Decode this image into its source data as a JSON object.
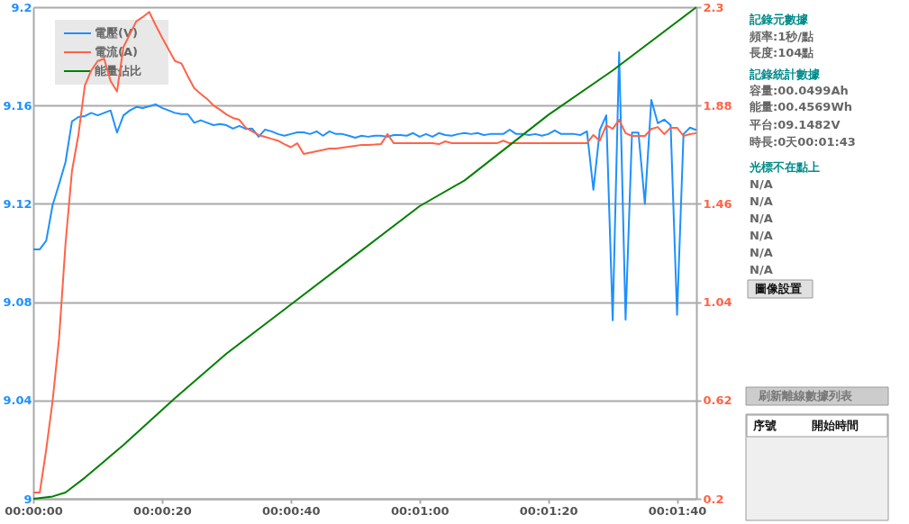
{
  "chart_data": {
    "type": "line",
    "x": [
      0,
      1,
      2,
      3,
      4,
      5,
      6,
      7,
      8,
      9,
      10,
      11,
      12,
      13,
      14,
      15,
      16,
      17,
      18,
      19,
      20,
      21,
      22,
      23,
      24,
      25,
      26,
      27,
      28,
      29,
      30,
      31,
      32,
      33,
      34,
      35,
      36,
      37,
      38,
      39,
      40,
      41,
      42,
      43,
      44,
      45,
      46,
      47,
      48,
      49,
      50,
      51,
      52,
      53,
      54,
      55,
      56,
      57,
      58,
      59,
      60,
      61,
      62,
      63,
      64,
      65,
      66,
      67,
      68,
      69,
      70,
      71,
      72,
      73,
      74,
      75,
      76,
      77,
      78,
      79,
      80,
      81,
      82,
      83,
      84,
      85,
      86,
      87,
      88,
      89,
      90,
      91,
      92,
      93,
      94,
      95,
      96,
      97,
      98,
      99,
      100,
      101,
      102,
      103
    ],
    "series": [
      {
        "name": "電壓(V)",
        "color": "#1e90ff",
        "values": [
          9.1015,
          9.1015,
          9.105,
          9.1195,
          9.128,
          9.137,
          9.1535,
          9.1553,
          9.1557,
          9.157,
          9.156,
          9.157,
          9.158,
          9.149,
          9.156,
          9.158,
          9.1594,
          9.159,
          9.1597,
          9.1605,
          9.159,
          9.158,
          9.157,
          9.1565,
          9.1565,
          9.153,
          9.154,
          9.153,
          9.152,
          9.1525,
          9.152,
          9.1506,
          9.1517,
          9.1505,
          9.1506,
          9.1473,
          9.1502,
          9.1495,
          9.1484,
          9.1477,
          9.1484,
          9.1491,
          9.1491,
          9.1484,
          9.1495,
          9.1477,
          9.1495,
          9.1484,
          9.1484,
          9.1477,
          9.1469,
          9.1477,
          9.1473,
          9.1477,
          9.1477,
          9.1473,
          9.148,
          9.148,
          9.1477,
          9.1488,
          9.1473,
          9.1484,
          9.1473,
          9.1488,
          9.148,
          9.1477,
          9.1484,
          9.1488,
          9.1484,
          9.1488,
          9.148,
          9.1484,
          9.1484,
          9.1484,
          9.1502,
          9.1484,
          9.1484,
          9.148,
          9.1484,
          9.1477,
          9.1484,
          9.1499,
          9.1484,
          9.1484,
          9.1484,
          9.148,
          9.1495,
          9.1257,
          9.15,
          9.156,
          9.0726,
          9.1817,
          9.0729,
          9.149,
          9.149,
          9.12,
          9.1623,
          9.1528,
          9.1543,
          9.152,
          9.0748,
          9.1484,
          9.151,
          9.15
        ]
      },
      {
        "name": "電流(A)",
        "color": "#ff6347",
        "axis": "y2",
        "values": [
          0.227,
          0.227,
          0.41,
          0.62,
          0.885,
          1.29,
          1.6,
          1.754,
          1.965,
          2.03,
          2.07,
          2.08,
          1.985,
          1.94,
          2.13,
          2.185,
          2.24,
          2.258,
          2.28,
          2.223,
          2.17,
          2.12,
          2.07,
          2.06,
          2.005,
          1.954,
          1.93,
          1.908,
          1.88,
          1.862,
          1.842,
          1.827,
          1.819,
          1.785,
          1.77,
          1.754,
          1.746,
          1.738,
          1.73,
          1.715,
          1.702,
          1.719,
          1.673,
          1.679,
          1.685,
          1.69,
          1.696,
          1.696,
          1.7,
          1.704,
          1.708,
          1.712,
          1.712,
          1.713,
          1.715,
          1.758,
          1.719,
          1.719,
          1.719,
          1.719,
          1.719,
          1.719,
          1.719,
          1.715,
          1.727,
          1.719,
          1.719,
          1.719,
          1.719,
          1.719,
          1.719,
          1.719,
          1.719,
          1.73,
          1.719,
          1.719,
          1.719,
          1.719,
          1.719,
          1.719,
          1.719,
          1.719,
          1.719,
          1.719,
          1.719,
          1.719,
          1.719,
          1.754,
          1.73,
          1.796,
          1.78,
          1.819,
          1.762,
          1.75,
          1.75,
          1.75,
          1.78,
          1.788,
          1.758,
          1.785,
          1.785,
          1.75,
          1.758,
          1.762
        ]
      },
      {
        "name": "能量佔比",
        "color": "#008000",
        "axis": "y2",
        "x": [
          0,
          3,
          5,
          8,
          11,
          14,
          18,
          22,
          30,
          40,
          50,
          60,
          67,
          80,
          90,
          103
        ],
        "values": [
          0.2,
          0.21,
          0.227,
          0.29,
          0.36,
          0.43,
          0.53,
          0.63,
          0.82,
          1.03,
          1.24,
          1.45,
          1.56,
          1.84,
          2.03,
          2.3
        ]
      }
    ],
    "xlim": [
      0,
      103
    ],
    "xticks": [
      {
        "value": 0,
        "label": "00:00:00"
      },
      {
        "value": 20,
        "label": "00:00:20"
      },
      {
        "value": 40,
        "label": "00:00:40"
      },
      {
        "value": 60,
        "label": "00:01:00"
      },
      {
        "value": 80,
        "label": "00:01:20"
      },
      {
        "value": 100,
        "label": "00:01:40"
      }
    ],
    "ylim": [
      9,
      9.2
    ],
    "yticks": [
      9,
      9.04,
      9.08,
      9.12,
      9.16,
      9.2
    ],
    "y2lim": [
      0.2,
      2.3
    ],
    "y2ticks": [
      0.2,
      0.62,
      1.04,
      1.46,
      1.88,
      2.3
    ],
    "grid": "y",
    "legend": "top left",
    "marker": "none",
    "line_style": "solid",
    "annotations": [
      "記錄元數據",
      "頻率:1秒/點",
      "長度:104點",
      "記錄統計數據",
      "容量:00.0499Ah",
      "能量:00.4569Wh",
      "平台:09.1482V",
      "時長:0天00:01:43",
      "光標不在點上",
      "N/A",
      "N/A",
      "N/A",
      "N/A",
      "N/A",
      "N/A",
      "圖像設置",
      "刷新離線數據列表",
      "序號",
      "開始時間"
    ]
  }
}
